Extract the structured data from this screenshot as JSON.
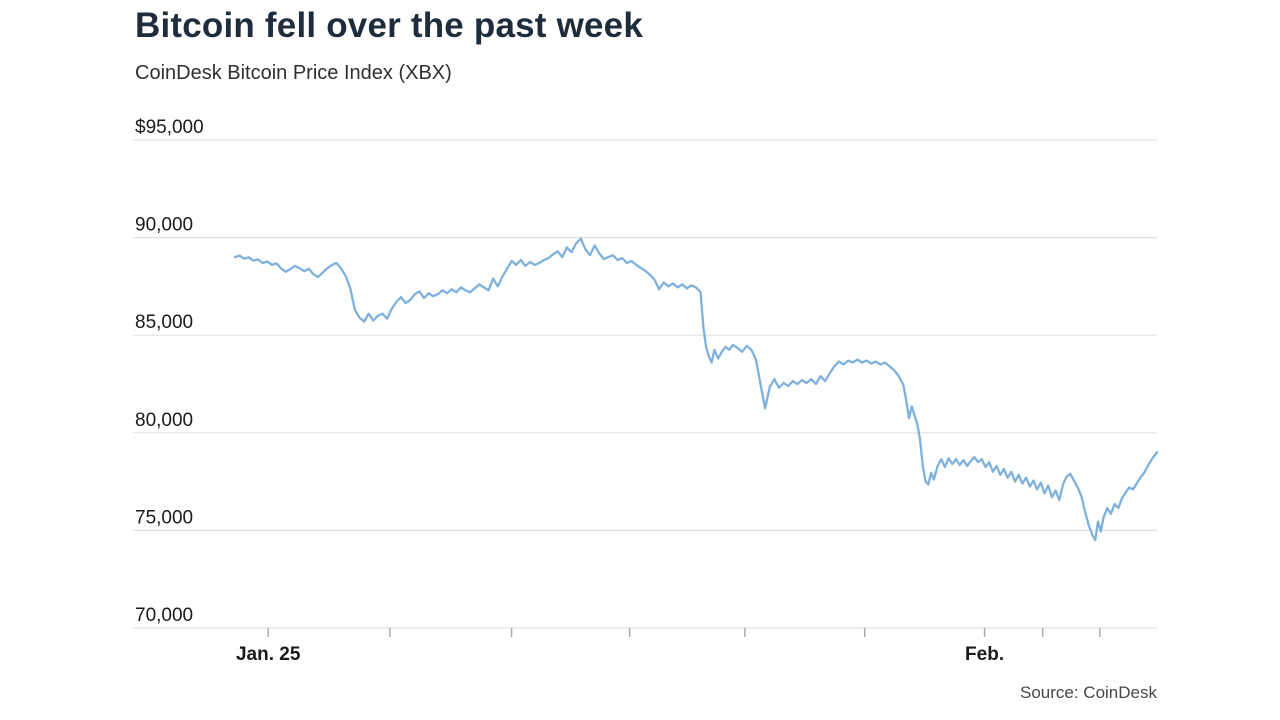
{
  "page": {
    "title": "Bitcoin fell over the past week",
    "subtitle": "CoinDesk Bitcoin Price Index (XBX)",
    "source": "Source: CoinDesk"
  },
  "chart_data": {
    "type": "line",
    "title": "Bitcoin fell over the past week",
    "subtitle": "CoinDesk Bitcoin Price Index (XBX)",
    "source": "Source: CoinDesk",
    "legend": "none",
    "colors": {
      "line": "#7fb1dd",
      "grid": "#e0e0e0",
      "tick": "#aaaaaa",
      "axis_text": "#1a1a1a"
    },
    "y_axis": {
      "min": 70000,
      "max": 95000,
      "grid": true,
      "ticks": [
        {
          "label": "$95,000",
          "value": 95000
        },
        {
          "label": "90,000",
          "value": 90000
        },
        {
          "label": "85,000",
          "value": 85000
        },
        {
          "label": "80,000",
          "value": 80000
        },
        {
          "label": "75,000",
          "value": 75000
        },
        {
          "label": "70,000",
          "value": 70000
        }
      ]
    },
    "x_axis": {
      "unit": "fraction of plot width; span runs from Jan. 25 through early Feb.",
      "ticks": [
        {
          "f": 0.036,
          "label": "Jan. 25"
        },
        {
          "f": 0.168
        },
        {
          "f": 0.3
        },
        {
          "f": 0.428
        },
        {
          "f": 0.553
        },
        {
          "f": 0.683
        },
        {
          "f": 0.813,
          "label": "Feb."
        },
        {
          "f": 0.876
        },
        {
          "f": 0.938
        }
      ]
    },
    "series": [
      {
        "name": "CoinDesk Bitcoin Price Index (XBX)",
        "color": "#7fb1dd",
        "points": [
          [
            0.0,
            89000
          ],
          [
            0.005,
            89080
          ],
          [
            0.01,
            88920
          ],
          [
            0.015,
            88990
          ],
          [
            0.02,
            88820
          ],
          [
            0.025,
            88880
          ],
          [
            0.03,
            88700
          ],
          [
            0.035,
            88780
          ],
          [
            0.04,
            88600
          ],
          [
            0.045,
            88680
          ],
          [
            0.05,
            88420
          ],
          [
            0.055,
            88250
          ],
          [
            0.06,
            88380
          ],
          [
            0.065,
            88550
          ],
          [
            0.07,
            88430
          ],
          [
            0.075,
            88280
          ],
          [
            0.08,
            88400
          ],
          [
            0.085,
            88120
          ],
          [
            0.09,
            87980
          ],
          [
            0.095,
            88200
          ],
          [
            0.1,
            88420
          ],
          [
            0.105,
            88600
          ],
          [
            0.11,
            88700
          ],
          [
            0.115,
            88420
          ],
          [
            0.12,
            88050
          ],
          [
            0.125,
            87400
          ],
          [
            0.13,
            86300
          ],
          [
            0.135,
            85900
          ],
          [
            0.14,
            85700
          ],
          [
            0.145,
            86100
          ],
          [
            0.15,
            85750
          ],
          [
            0.155,
            86000
          ],
          [
            0.16,
            86100
          ],
          [
            0.165,
            85850
          ],
          [
            0.17,
            86350
          ],
          [
            0.175,
            86700
          ],
          [
            0.18,
            86950
          ],
          [
            0.185,
            86650
          ],
          [
            0.19,
            86800
          ],
          [
            0.195,
            87100
          ],
          [
            0.2,
            87250
          ],
          [
            0.205,
            86900
          ],
          [
            0.21,
            87150
          ],
          [
            0.215,
            87000
          ],
          [
            0.22,
            87100
          ],
          [
            0.225,
            87300
          ],
          [
            0.23,
            87150
          ],
          [
            0.235,
            87350
          ],
          [
            0.24,
            87200
          ],
          [
            0.245,
            87450
          ],
          [
            0.25,
            87300
          ],
          [
            0.255,
            87200
          ],
          [
            0.26,
            87400
          ],
          [
            0.265,
            87600
          ],
          [
            0.27,
            87450
          ],
          [
            0.275,
            87300
          ],
          [
            0.28,
            87900
          ],
          [
            0.285,
            87500
          ],
          [
            0.29,
            88000
          ],
          [
            0.295,
            88400
          ],
          [
            0.3,
            88800
          ],
          [
            0.305,
            88600
          ],
          [
            0.31,
            88850
          ],
          [
            0.315,
            88550
          ],
          [
            0.32,
            88750
          ],
          [
            0.325,
            88600
          ],
          [
            0.33,
            88700
          ],
          [
            0.335,
            88850
          ],
          [
            0.34,
            88950
          ],
          [
            0.345,
            89150
          ],
          [
            0.35,
            89300
          ],
          [
            0.355,
            89000
          ],
          [
            0.36,
            89500
          ],
          [
            0.365,
            89250
          ],
          [
            0.37,
            89700
          ],
          [
            0.375,
            89950
          ],
          [
            0.38,
            89400
          ],
          [
            0.385,
            89100
          ],
          [
            0.39,
            89600
          ],
          [
            0.395,
            89200
          ],
          [
            0.4,
            88900
          ],
          [
            0.405,
            89000
          ],
          [
            0.41,
            89100
          ],
          [
            0.415,
            88850
          ],
          [
            0.42,
            88950
          ],
          [
            0.425,
            88700
          ],
          [
            0.43,
            88800
          ],
          [
            0.435,
            88600
          ],
          [
            0.44,
            88450
          ],
          [
            0.445,
            88300
          ],
          [
            0.45,
            88100
          ],
          [
            0.455,
            87850
          ],
          [
            0.46,
            87350
          ],
          [
            0.465,
            87700
          ],
          [
            0.47,
            87500
          ],
          [
            0.475,
            87650
          ],
          [
            0.48,
            87450
          ],
          [
            0.485,
            87600
          ],
          [
            0.49,
            87400
          ],
          [
            0.495,
            87550
          ],
          [
            0.5,
            87450
          ],
          [
            0.505,
            87200
          ],
          [
            0.508,
            85400
          ],
          [
            0.511,
            84400
          ],
          [
            0.514,
            83900
          ],
          [
            0.517,
            83600
          ],
          [
            0.52,
            84250
          ],
          [
            0.524,
            83800
          ],
          [
            0.528,
            84150
          ],
          [
            0.532,
            84400
          ],
          [
            0.536,
            84250
          ],
          [
            0.54,
            84500
          ],
          [
            0.545,
            84350
          ],
          [
            0.55,
            84150
          ],
          [
            0.555,
            84450
          ],
          [
            0.56,
            84250
          ],
          [
            0.565,
            83750
          ],
          [
            0.57,
            82500
          ],
          [
            0.575,
            81250
          ],
          [
            0.58,
            82350
          ],
          [
            0.585,
            82750
          ],
          [
            0.59,
            82300
          ],
          [
            0.595,
            82550
          ],
          [
            0.6,
            82400
          ],
          [
            0.605,
            82650
          ],
          [
            0.61,
            82500
          ],
          [
            0.615,
            82700
          ],
          [
            0.62,
            82550
          ],
          [
            0.625,
            82750
          ],
          [
            0.63,
            82500
          ],
          [
            0.635,
            82900
          ],
          [
            0.64,
            82650
          ],
          [
            0.645,
            83050
          ],
          [
            0.65,
            83400
          ],
          [
            0.655,
            83650
          ],
          [
            0.66,
            83500
          ],
          [
            0.665,
            83700
          ],
          [
            0.67,
            83600
          ],
          [
            0.675,
            83750
          ],
          [
            0.68,
            83600
          ],
          [
            0.685,
            83700
          ],
          [
            0.69,
            83550
          ],
          [
            0.695,
            83650
          ],
          [
            0.7,
            83500
          ],
          [
            0.705,
            83600
          ],
          [
            0.71,
            83400
          ],
          [
            0.715,
            83200
          ],
          [
            0.72,
            82900
          ],
          [
            0.725,
            82450
          ],
          [
            0.728,
            81650
          ],
          [
            0.731,
            80750
          ],
          [
            0.734,
            81350
          ],
          [
            0.737,
            80900
          ],
          [
            0.74,
            80450
          ],
          [
            0.743,
            79650
          ],
          [
            0.746,
            78300
          ],
          [
            0.749,
            77500
          ],
          [
            0.752,
            77350
          ],
          [
            0.755,
            77950
          ],
          [
            0.758,
            77600
          ],
          [
            0.762,
            78300
          ],
          [
            0.766,
            78650
          ],
          [
            0.77,
            78250
          ],
          [
            0.774,
            78700
          ],
          [
            0.778,
            78400
          ],
          [
            0.782,
            78650
          ],
          [
            0.786,
            78350
          ],
          [
            0.79,
            78600
          ],
          [
            0.794,
            78300
          ],
          [
            0.798,
            78550
          ],
          [
            0.802,
            78750
          ],
          [
            0.806,
            78500
          ],
          [
            0.81,
            78650
          ],
          [
            0.814,
            78250
          ],
          [
            0.818,
            78500
          ],
          [
            0.822,
            78000
          ],
          [
            0.826,
            78300
          ],
          [
            0.83,
            77850
          ],
          [
            0.834,
            78150
          ],
          [
            0.838,
            77700
          ],
          [
            0.842,
            78000
          ],
          [
            0.846,
            77500
          ],
          [
            0.85,
            77850
          ],
          [
            0.854,
            77400
          ],
          [
            0.858,
            77700
          ],
          [
            0.862,
            77250
          ],
          [
            0.866,
            77550
          ],
          [
            0.87,
            77100
          ],
          [
            0.874,
            77450
          ],
          [
            0.878,
            76900
          ],
          [
            0.882,
            77300
          ],
          [
            0.886,
            76700
          ],
          [
            0.89,
            77050
          ],
          [
            0.894,
            76550
          ],
          [
            0.898,
            77350
          ],
          [
            0.902,
            77750
          ],
          [
            0.906,
            77900
          ],
          [
            0.91,
            77550
          ],
          [
            0.914,
            77200
          ],
          [
            0.918,
            76750
          ],
          [
            0.922,
            75950
          ],
          [
            0.926,
            75250
          ],
          [
            0.93,
            74750
          ],
          [
            0.933,
            74500
          ],
          [
            0.936,
            75450
          ],
          [
            0.939,
            74950
          ],
          [
            0.942,
            75650
          ],
          [
            0.946,
            76150
          ],
          [
            0.95,
            75850
          ],
          [
            0.954,
            76350
          ],
          [
            0.958,
            76150
          ],
          [
            0.962,
            76650
          ],
          [
            0.966,
            76950
          ],
          [
            0.97,
            77200
          ],
          [
            0.974,
            77100
          ],
          [
            0.978,
            77400
          ],
          [
            0.982,
            77700
          ],
          [
            0.986,
            77950
          ],
          [
            0.99,
            78300
          ],
          [
            0.995,
            78700
          ],
          [
            1.0,
            79000
          ]
        ]
      }
    ]
  }
}
